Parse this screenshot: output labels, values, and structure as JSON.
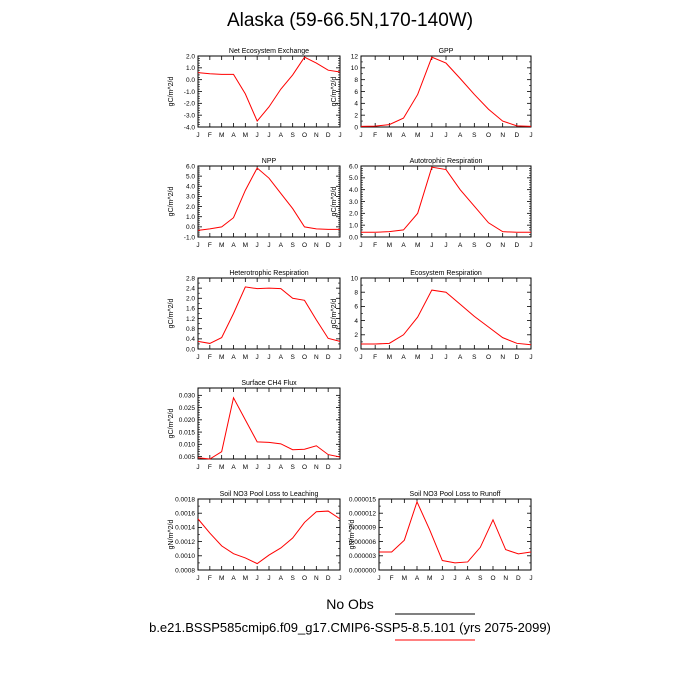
{
  "title": "Alaska (59-66.5N,170-140W)",
  "legend": {
    "label": "No Obs",
    "case": "b.e21.BSSP585cmip6.f09_g17.CMIP6-SSP5-8.5.101 (yrs 2075-2099)",
    "colors": {
      "line": "#ff0000",
      "axis": "#000000"
    }
  },
  "chart_data": [
    {
      "type": "line",
      "title": "Net Ecosystem Exchange",
      "ylabel": "gC/m^2/d",
      "categories": [
        "J",
        "F",
        "M",
        "A",
        "M",
        "J",
        "J",
        "A",
        "S",
        "O",
        "N",
        "D",
        "J"
      ],
      "ylim": [
        -4.0,
        2.0
      ],
      "yticks": [
        "-4.0",
        "-3.0",
        "-2.0",
        "-1.0",
        "0.0",
        "1.0",
        "2.0"
      ],
      "yminor": 4,
      "values": [
        0.6,
        0.5,
        0.45,
        0.45,
        -1.2,
        -3.5,
        -2.3,
        -0.8,
        0.4,
        1.9,
        1.4,
        0.8,
        0.65
      ]
    },
    {
      "type": "line",
      "title": "GPP",
      "ylabel": "gC/m^2/d",
      "categories": [
        "J",
        "F",
        "M",
        "A",
        "M",
        "J",
        "J",
        "A",
        "S",
        "O",
        "N",
        "D",
        "J"
      ],
      "ylim": [
        0,
        12
      ],
      "yticks": [
        "0",
        "2",
        "4",
        "6",
        "8",
        "10",
        "12"
      ],
      "yminor": 1,
      "values": [
        0.1,
        0.15,
        0.4,
        1.5,
        5.5,
        11.8,
        10.8,
        8.2,
        5.5,
        3.0,
        1.0,
        0.2,
        0.1
      ]
    },
    {
      "type": "line",
      "title": "NPP",
      "ylabel": "gC/m^2/d",
      "categories": [
        "J",
        "F",
        "M",
        "A",
        "M",
        "J",
        "J",
        "A",
        "S",
        "O",
        "N",
        "D",
        "J"
      ],
      "ylim": [
        -1.0,
        6.0
      ],
      "yticks": [
        "-1.0",
        "0.0",
        "1.0",
        "2.0",
        "3.0",
        "4.0",
        "5.0",
        "6.0"
      ],
      "yminor": 4,
      "values": [
        -0.35,
        -0.2,
        0.0,
        0.9,
        3.6,
        5.8,
        4.8,
        3.3,
        1.8,
        0.0,
        -0.2,
        -0.25,
        -0.25
      ]
    },
    {
      "type": "line",
      "title": "Autotrophic Respiration",
      "ylabel": "gC/m^2/d",
      "categories": [
        "J",
        "F",
        "M",
        "A",
        "M",
        "J",
        "J",
        "A",
        "S",
        "O",
        "N",
        "D",
        "J"
      ],
      "ylim": [
        0,
        6.0
      ],
      "yticks": [
        "0.0",
        "1.0",
        "2.0",
        "3.0",
        "4.0",
        "5.0",
        "6.0"
      ],
      "yminor": 4,
      "values": [
        0.4,
        0.4,
        0.45,
        0.6,
        2.0,
        5.9,
        5.7,
        4.0,
        2.6,
        1.2,
        0.45,
        0.4,
        0.4
      ]
    },
    {
      "type": "line",
      "title": "Heterotrophic Respiration",
      "ylabel": "gC/m^2/d",
      "categories": [
        "J",
        "F",
        "M",
        "A",
        "M",
        "J",
        "J",
        "A",
        "S",
        "O",
        "N",
        "D",
        "J"
      ],
      "ylim": [
        0,
        2.8
      ],
      "yticks": [
        "0.0",
        "0.4",
        "0.8",
        "1.2",
        "1.6",
        "2.0",
        "2.4",
        "2.8"
      ],
      "yminor": 1,
      "values": [
        0.3,
        0.22,
        0.45,
        1.4,
        2.45,
        2.38,
        2.4,
        2.38,
        2.0,
        1.92,
        1.15,
        0.42,
        0.3
      ]
    },
    {
      "type": "line",
      "title": "Ecosystem Respiration",
      "ylabel": "gC/m^2/d",
      "categories": [
        "J",
        "F",
        "M",
        "A",
        "M",
        "J",
        "J",
        "A",
        "S",
        "O",
        "N",
        "D",
        "J"
      ],
      "ylim": [
        0,
        10
      ],
      "yticks": [
        "0",
        "2",
        "4",
        "6",
        "8",
        "10"
      ],
      "yminor": 1,
      "values": [
        0.7,
        0.7,
        0.8,
        2.0,
        4.5,
        8.3,
        8.0,
        6.3,
        4.6,
        3.1,
        1.6,
        0.8,
        0.6
      ]
    },
    {
      "type": "line",
      "title": "Surface CH4 Flux",
      "ylabel": "gC/m^2/d",
      "categories": [
        "J",
        "F",
        "M",
        "A",
        "M",
        "J",
        "J",
        "A",
        "S",
        "O",
        "N",
        "D",
        "J"
      ],
      "ylim": [
        0.004,
        0.033
      ],
      "yticks": [
        "0.005",
        "0.010",
        "0.015",
        "0.020",
        "0.025",
        "0.030"
      ],
      "ytickvals": [
        0.005,
        0.01,
        0.015,
        0.02,
        0.025,
        0.03
      ],
      "yminor": 4,
      "values": [
        0.0045,
        0.004,
        0.007,
        0.029,
        0.02,
        0.011,
        0.0108,
        0.0102,
        0.0078,
        0.008,
        0.0094,
        0.0058,
        0.0048
      ]
    },
    {
      "type": "line",
      "title": "Soil NO3 Pool Loss to Leaching",
      "ylabel": "gN/m^2/d",
      "categories": [
        "J",
        "F",
        "M",
        "A",
        "M",
        "J",
        "J",
        "A",
        "S",
        "O",
        "N",
        "D",
        "J"
      ],
      "ylim": [
        0.0008,
        0.0018
      ],
      "yticks": [
        "0.0008",
        "0.0010",
        "0.0012",
        "0.0014",
        "0.0016",
        "0.0018"
      ],
      "yminor": 1,
      "values": [
        0.00152,
        0.00132,
        0.00114,
        0.00103,
        0.00097,
        0.00089,
        0.00101,
        0.00111,
        0.00125,
        0.00147,
        0.00162,
        0.00163,
        0.00152
      ]
    },
    {
      "type": "line",
      "title": "Soil NO3 Pool Loss to Runoff",
      "ylabel": "gN/m^2/d",
      "categories": [
        "J",
        "F",
        "M",
        "A",
        "M",
        "J",
        "J",
        "A",
        "S",
        "O",
        "N",
        "D",
        "J"
      ],
      "ylim": [
        0,
        1.5e-05
      ],
      "yticks": [
        "0.000000",
        "0.000003",
        "0.000006",
        "0.000009",
        "0.000012",
        "0.000015"
      ],
      "yminor": 1,
      "values": [
        3.8e-06,
        3.8e-06,
        6.3e-06,
        1.44e-05,
        8.5e-06,
        2e-06,
        1.5e-06,
        1.7e-06,
        4.8e-06,
        1.06e-05,
        4.3e-06,
        3.4e-06,
        3.8e-06
      ]
    }
  ]
}
